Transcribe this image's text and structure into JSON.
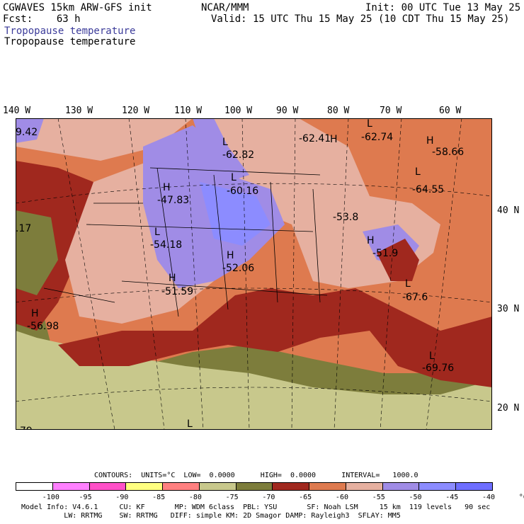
{
  "header": {
    "model": "CGWAVES 15km ARW-GFS init",
    "fcst_label": "Fcst:",
    "fcst_value": "63 h",
    "org": "NCAR/MMM",
    "init": "Init: 00 UTC Tue 13 May 25",
    "valid": "Valid: 15 UTC Thu 15 May 25 (10 CDT Thu 15 May 25)",
    "field_title_colored": "Tropopause temperature",
    "field_title_black": "Tropopause temperature"
  },
  "axes": {
    "lon_labels": [
      "140 W",
      "130 W",
      "120 W",
      "110 W",
      "100 W",
      "90 W",
      "80 W",
      "70 W",
      "60 W"
    ],
    "lat_labels": [
      "40 N",
      "30 N",
      "20 N"
    ]
  },
  "map_labels": {
    "highs_lows": [
      {
        "type": "H",
        "value": "-47.83"
      },
      {
        "type": "L",
        "value": "-54.18"
      },
      {
        "type": "H",
        "value": "-51.59"
      },
      {
        "type": "H",
        "value": "-56.98"
      },
      {
        "type": "L",
        "value": "-62.82"
      },
      {
        "type": "L",
        "value": "-60.16"
      },
      {
        "type": "H",
        "value": "-52.06"
      },
      {
        "type": "H",
        "value": "-62.41"
      },
      {
        "type": "L",
        "value": "-62.74"
      },
      {
        "type": "H",
        "value": "-58.66"
      },
      {
        "type": "L",
        "value": "-64.55"
      },
      {
        "type": "H",
        "value": "-51.9"
      },
      {
        "type": "L",
        "value": "-67.6"
      },
      {
        "type": "L",
        "value": "-69.76"
      },
      {
        "type": "L",
        "value": ""
      }
    ],
    "partial_values": [
      "9.42",
      ".17",
      "-53.8",
      "79"
    ]
  },
  "contours": {
    "line": "CONTOURS:  UNITS=°C  LOW=  0.0000      HIGH=  0.0000      INTERVAL=   1000.0"
  },
  "colorbar": {
    "colors": [
      "#ffffff",
      "#ff80ff",
      "#ff50c8",
      "#ffff80",
      "#ff8080",
      "#c8c88c",
      "#7d7d3c",
      "#a0281e",
      "#de7a4f",
      "#e6b0a0",
      "#a08ce6",
      "#8c8cff",
      "#6e6eff"
    ],
    "tick_labels": [
      "-100",
      "-95",
      "-90",
      "-85",
      "-80",
      "-75",
      "-70",
      "-65",
      "-60",
      "-55",
      "-50",
      "-45",
      "-40",
      "°C"
    ]
  },
  "model_info": {
    "line1": "Model Info: V4.6.1     CU: KF       MP: WDM 6class  PBL: YSU       SF: Noah LSM     15 km  119 levels   90 sec",
    "line2": "          LW: RRTMG    SW: RRTMG   DIFF: simple KM: 2D Smagor DAMP: Rayleigh3  SFLAY: MM5"
  }
}
